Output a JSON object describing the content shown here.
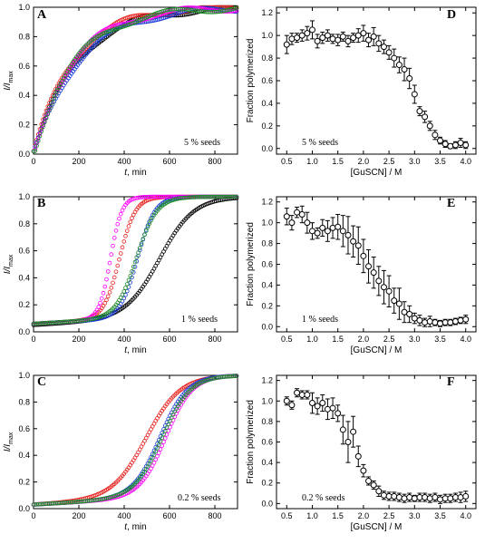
{
  "chart_data": [
    {
      "panel_label": "A",
      "type": "scatter",
      "xlabel_italic": "t",
      "xlabel_rest": ", min",
      "ylabel_base": "I/I",
      "ylabel_sub": "max",
      "xlim": [
        0,
        900
      ],
      "ylim": [
        0,
        1.0
      ],
      "xticks": [
        "0",
        "200",
        "400",
        "600",
        "800"
      ],
      "yticks": [
        "0.0",
        "0.2",
        "0.4",
        "0.6",
        "0.8",
        "1.0"
      ],
      "annotation": "5 % seeds",
      "series": [
        {
          "color": "#000000",
          "k": 0.0052,
          "tau": 0
        },
        {
          "color": "#e8231f",
          "k": 0.0058,
          "tau": 0
        },
        {
          "color": "#1c3bd6",
          "k": 0.005,
          "tau": 0
        },
        {
          "color": "#ff00ff",
          "k": 0.0056,
          "tau": 0
        },
        {
          "color": "#1e8c2a",
          "k": 0.0055,
          "tau": 0
        }
      ]
    },
    {
      "panel_label": "B",
      "type": "scatter",
      "xlabel_italic": "t",
      "xlabel_rest": ", min",
      "ylabel_base": "I/I",
      "ylabel_sub": "max",
      "xlim": [
        0,
        900
      ],
      "ylim": [
        0,
        1.0
      ],
      "xticks": [
        "0",
        "200",
        "400",
        "600",
        "800"
      ],
      "yticks": [
        "0.0",
        "0.2",
        "0.4",
        "0.6",
        "0.8",
        "1.0"
      ],
      "annotation": "1 % seeds",
      "series": [
        {
          "color": "#000000",
          "x0": 560,
          "w": 75,
          "base": 0.05
        },
        {
          "color": "#e8231f",
          "x0": 380,
          "w": 35,
          "base": 0.06
        },
        {
          "color": "#1c3bd6",
          "x0": 460,
          "w": 38,
          "base": 0.06
        },
        {
          "color": "#ff00ff",
          "x0": 340,
          "w": 25,
          "base": 0.06
        },
        {
          "color": "#1e8c2a",
          "x0": 455,
          "w": 45,
          "base": 0.06
        }
      ]
    },
    {
      "panel_label": "C",
      "type": "scatter",
      "xlabel_italic": "t",
      "xlabel_rest": ", min",
      "ylabel_base": "I/I",
      "ylabel_sub": "max",
      "xlim": [
        0,
        900
      ],
      "ylim": [
        0,
        1.0
      ],
      "xticks": [
        "0",
        "200",
        "400",
        "600",
        "800"
      ],
      "yticks": [
        "0.0",
        "0.2",
        "0.4",
        "0.6",
        "0.8",
        "1.0"
      ],
      "annotation": "0.2 % seeds",
      "series": [
        {
          "color": "#e8231f",
          "x0": 500,
          "w": 75,
          "base": 0.03
        },
        {
          "color": "#1c3bd6",
          "x0": 560,
          "w": 60,
          "base": 0.03
        },
        {
          "color": "#ff00ff",
          "x0": 585,
          "w": 58,
          "base": 0.03
        },
        {
          "color": "#1e8c2a",
          "x0": 570,
          "w": 62,
          "base": 0.03
        }
      ]
    },
    {
      "panel_label": "D",
      "type": "scatter",
      "xlabel": "[GuSCN] / M",
      "ylabel": "Fraction polymerized",
      "xlim": [
        0.3,
        4.2
      ],
      "ylim": [
        -0.05,
        1.25
      ],
      "xticks": [
        "0.5",
        "1.0",
        "1.5",
        "2.0",
        "2.5",
        "3.0",
        "3.5",
        "4.0"
      ],
      "yticks": [
        "0.0",
        "0.2",
        "0.4",
        "0.6",
        "0.8",
        "1.0",
        "1.2"
      ],
      "annotation": "5 % seeds",
      "x": [
        0.5,
        0.6,
        0.7,
        0.8,
        0.9,
        1.0,
        1.1,
        1.2,
        1.3,
        1.4,
        1.5,
        1.6,
        1.7,
        1.8,
        1.9,
        2.0,
        2.1,
        2.2,
        2.3,
        2.4,
        2.5,
        2.6,
        2.7,
        2.8,
        2.9,
        3.0,
        3.1,
        3.2,
        3.3,
        3.4,
        3.5,
        3.6,
        3.7,
        3.8,
        3.9,
        4.0
      ],
      "y": [
        0.92,
        0.97,
        0.98,
        1.0,
        1.02,
        1.05,
        0.95,
        0.98,
        1.0,
        0.97,
        0.96,
        0.99,
        0.95,
        0.98,
        1.0,
        1.02,
        0.96,
        0.99,
        0.93,
        0.9,
        0.85,
        0.8,
        0.74,
        0.7,
        0.62,
        0.48,
        0.33,
        0.28,
        0.2,
        0.12,
        0.07,
        0.04,
        0.02,
        0.03,
        0.05,
        0.03
      ],
      "err": [
        0.08,
        0.05,
        0.04,
        0.05,
        0.06,
        0.08,
        0.06,
        0.05,
        0.05,
        0.04,
        0.05,
        0.04,
        0.05,
        0.04,
        0.06,
        0.07,
        0.06,
        0.08,
        0.07,
        0.06,
        0.06,
        0.08,
        0.07,
        0.1,
        0.09,
        0.08,
        0.04,
        0.05,
        0.04,
        0.04,
        0.03,
        0.03,
        0.02,
        0.03,
        0.04,
        0.03
      ]
    },
    {
      "panel_label": "E",
      "type": "scatter",
      "xlabel": "[GuSCN] / M",
      "ylabel": "Fraction polymerized",
      "xlim": [
        0.3,
        4.2
      ],
      "ylim": [
        -0.05,
        1.25
      ],
      "xticks": [
        "0.5",
        "1.0",
        "1.5",
        "2.0",
        "2.5",
        "3.0",
        "3.5",
        "4.0"
      ],
      "yticks": [
        "0.0",
        "0.2",
        "0.4",
        "0.6",
        "0.8",
        "1.0",
        "1.2"
      ],
      "annotation": "1 % seeds",
      "x": [
        0.5,
        0.6,
        0.7,
        0.8,
        0.9,
        1.0,
        1.1,
        1.2,
        1.3,
        1.4,
        1.5,
        1.6,
        1.7,
        1.8,
        1.9,
        2.0,
        2.1,
        2.2,
        2.3,
        2.4,
        2.5,
        2.6,
        2.7,
        2.8,
        2.9,
        3.0,
        3.1,
        3.2,
        3.3,
        3.4,
        3.5,
        3.6,
        3.7,
        3.8,
        3.9,
        4.0
      ],
      "y": [
        1.06,
        1.0,
        1.1,
        1.08,
        1.0,
        0.92,
        0.9,
        0.95,
        0.92,
        0.95,
        0.96,
        0.92,
        0.88,
        0.82,
        0.78,
        0.68,
        0.58,
        0.52,
        0.44,
        0.38,
        0.34,
        0.25,
        0.22,
        0.14,
        0.12,
        0.08,
        0.06,
        0.04,
        0.05,
        0.04,
        0.03,
        0.04,
        0.04,
        0.05,
        0.06,
        0.07
      ],
      "err": [
        0.08,
        0.07,
        0.05,
        0.08,
        0.1,
        0.08,
        0.05,
        0.08,
        0.1,
        0.1,
        0.12,
        0.15,
        0.18,
        0.15,
        0.18,
        0.16,
        0.16,
        0.15,
        0.14,
        0.16,
        0.15,
        0.12,
        0.15,
        0.1,
        0.08,
        0.05,
        0.05,
        0.04,
        0.05,
        0.03,
        0.03,
        0.03,
        0.03,
        0.03,
        0.03,
        0.04
      ]
    },
    {
      "panel_label": "F",
      "type": "scatter",
      "xlabel": "[GuSCN] / M",
      "ylabel": "Fraction polymerized",
      "xlim": [
        0.3,
        4.2
      ],
      "ylim": [
        -0.05,
        1.25
      ],
      "xticks": [
        "0.5",
        "1.0",
        "1.5",
        "2.0",
        "2.5",
        "3.0",
        "3.5",
        "4.0"
      ],
      "yticks": [
        "0.0",
        "0.2",
        "0.4",
        "0.6",
        "0.8",
        "1.0",
        "1.2"
      ],
      "annotation": "0.2 % seeds",
      "x": [
        0.5,
        0.6,
        0.7,
        0.8,
        0.9,
        1.0,
        1.1,
        1.2,
        1.3,
        1.4,
        1.5,
        1.6,
        1.7,
        1.8,
        1.9,
        2.0,
        2.1,
        2.2,
        2.3,
        2.4,
        2.5,
        2.6,
        2.7,
        2.8,
        2.9,
        3.0,
        3.1,
        3.2,
        3.3,
        3.4,
        3.5,
        3.6,
        3.7,
        3.8,
        3.9,
        4.0
      ],
      "y": [
        1.0,
        0.96,
        1.08,
        1.06,
        1.06,
        0.98,
        0.95,
        0.98,
        0.92,
        0.93,
        0.88,
        0.72,
        0.6,
        0.7,
        0.46,
        0.32,
        0.22,
        0.18,
        0.12,
        0.08,
        0.07,
        0.07,
        0.06,
        0.05,
        0.06,
        0.05,
        0.06,
        0.06,
        0.05,
        0.06,
        0.04,
        0.05,
        0.05,
        0.06,
        0.06,
        0.07
      ],
      "err": [
        0.04,
        0.04,
        0.04,
        0.04,
        0.04,
        0.1,
        0.08,
        0.08,
        0.1,
        0.1,
        0.08,
        0.14,
        0.2,
        0.15,
        0.1,
        0.06,
        0.04,
        0.04,
        0.05,
        0.04,
        0.04,
        0.04,
        0.04,
        0.04,
        0.04,
        0.03,
        0.04,
        0.04,
        0.04,
        0.04,
        0.04,
        0.04,
        0.04,
        0.04,
        0.05,
        0.05
      ]
    }
  ]
}
